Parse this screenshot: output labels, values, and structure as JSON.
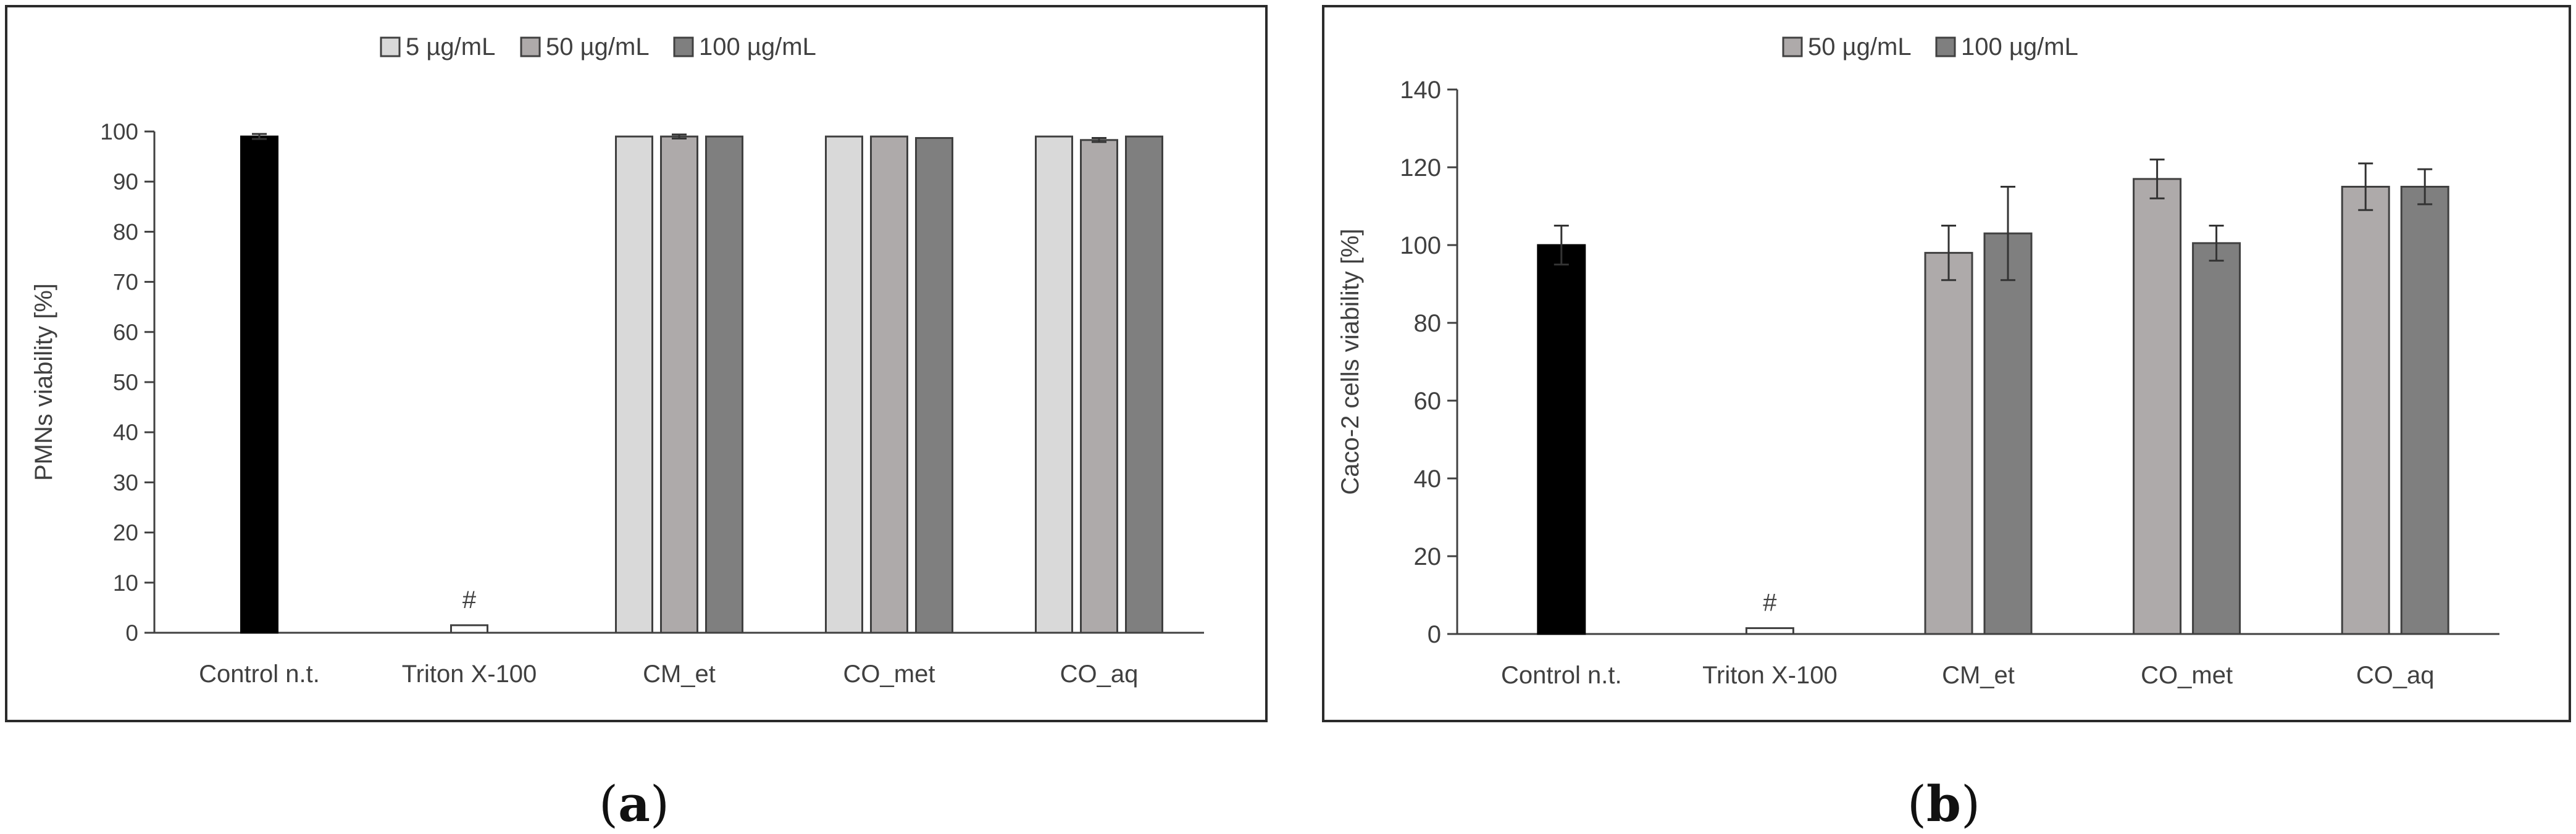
{
  "captions": {
    "a": "a",
    "b": "b"
  },
  "colors": {
    "control": "#000000",
    "s5": "#d9d9d9",
    "s50": "#aeaaaa",
    "s100": "#7f7f7f",
    "triton": "#ffffff",
    "axis": "#404040"
  },
  "chart_data": [
    {
      "id": "a",
      "type": "bar",
      "title": "",
      "xlabel": "",
      "ylabel": "PMNs viability [%]",
      "ylim": [
        0,
        100
      ],
      "yticks": [
        0,
        10,
        20,
        30,
        40,
        50,
        60,
        70,
        80,
        90,
        100
      ],
      "grid": false,
      "legend_position": "top",
      "legend": [
        "5 µg/mL",
        "50 µg/mL",
        "100 µg/mL"
      ],
      "categories": [
        "Control n.t.",
        "Triton X-100",
        "CM_et",
        "CO_met",
        "CO_aq"
      ],
      "annotations": [
        {
          "category": "Triton X-100",
          "text": "#"
        }
      ],
      "bars": [
        {
          "category": "Control n.t.",
          "series": "Control",
          "value": 99,
          "error": 0.5
        },
        {
          "category": "Triton X-100",
          "series": "Triton",
          "value": 1.5,
          "error": 0
        },
        {
          "category": "CM_et",
          "series": "5 µg/mL",
          "value": 99,
          "error": 0
        },
        {
          "category": "CM_et",
          "series": "50 µg/mL",
          "value": 99,
          "error": 0.4
        },
        {
          "category": "CM_et",
          "series": "100 µg/mL",
          "value": 99,
          "error": 0
        },
        {
          "category": "CO_met",
          "series": "5 µg/mL",
          "value": 99,
          "error": 0
        },
        {
          "category": "CO_met",
          "series": "50 µg/mL",
          "value": 99,
          "error": 0
        },
        {
          "category": "CO_met",
          "series": "100 µg/mL",
          "value": 98.7,
          "error": 0
        },
        {
          "category": "CO_aq",
          "series": "5 µg/mL",
          "value": 99,
          "error": 0
        },
        {
          "category": "CO_aq",
          "series": "50 µg/mL",
          "value": 98.3,
          "error": 0.4
        },
        {
          "category": "CO_aq",
          "series": "100 µg/mL",
          "value": 99,
          "error": 0
        }
      ]
    },
    {
      "id": "b",
      "type": "bar",
      "title": "",
      "xlabel": "",
      "ylabel": "Caco-2 cells viability [%]",
      "ylim": [
        0,
        140
      ],
      "yticks": [
        0,
        20,
        40,
        60,
        80,
        100,
        120,
        140
      ],
      "grid": false,
      "legend_position": "top",
      "legend": [
        "50 µg/mL",
        "100 µg/mL"
      ],
      "categories": [
        "Control n.t.",
        "Triton X-100",
        "CM_et",
        "CO_met",
        "CO_aq"
      ],
      "annotations": [
        {
          "category": "Triton X-100",
          "text": "#"
        }
      ],
      "bars": [
        {
          "category": "Control n.t.",
          "series": "Control",
          "value": 100,
          "error": 5
        },
        {
          "category": "Triton X-100",
          "series": "Triton",
          "value": 1.5,
          "error": 0
        },
        {
          "category": "CM_et",
          "series": "50 µg/mL",
          "value": 98,
          "error": 7
        },
        {
          "category": "CM_et",
          "series": "100 µg/mL",
          "value": 103,
          "error": 12
        },
        {
          "category": "CO_met",
          "series": "50 µg/mL",
          "value": 117,
          "error": 5
        },
        {
          "category": "CO_met",
          "series": "100 µg/mL",
          "value": 100.5,
          "error": 4.5
        },
        {
          "category": "CO_aq",
          "series": "50 µg/mL",
          "value": 115,
          "error": 6
        },
        {
          "category": "CO_aq",
          "series": "100 µg/mL",
          "value": 115,
          "error": 4.5
        }
      ]
    }
  ]
}
